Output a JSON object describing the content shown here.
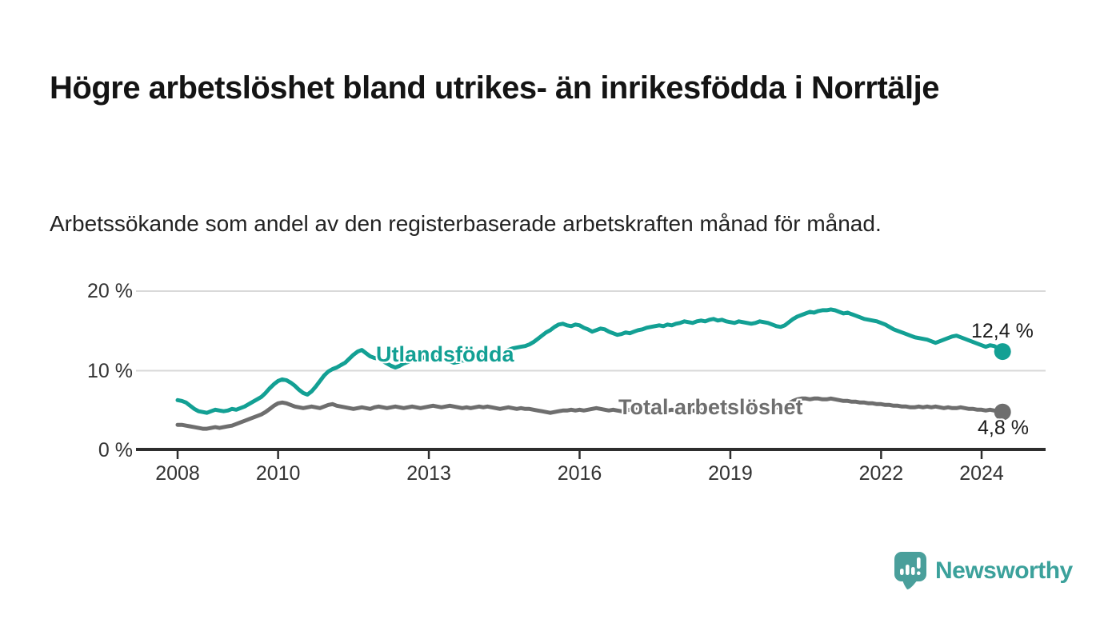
{
  "header": {
    "title": "Högre arbetslöshet bland utrikes- än inrikesfödda i Norrtälje",
    "subtitle": "Arbetssökande som andel av den registerbaserade arbetskraften månad för månad."
  },
  "branding": {
    "name": "Newsworthy",
    "logo_icon": "speech-bubble-bar-chart-icon",
    "brand_color": "#3ba19b",
    "logo_bubble_color": "#4a9f9b"
  },
  "chart_data": {
    "type": "line",
    "title": "Högre arbetslöshet bland utrikes- än inrikesfödda i Norrtälje",
    "subtitle": "Arbetssökande som andel av den registerbaserade arbetskraften månad för månad.",
    "unit": "%",
    "x_start_year": 2008,
    "x_step": "monthly",
    "x_end_year": 2024.417,
    "ylim": [
      0,
      20
    ],
    "yticks": [
      "0 %",
      "10 %",
      "20 %"
    ],
    "ytick_values": [
      0,
      10,
      20
    ],
    "xticks": [
      2008,
      2010,
      2013,
      2016,
      2019,
      2022,
      2024
    ],
    "grid": "horizontal-only",
    "legend_position": "inline-on-line",
    "axis_color": "#2e2e2e",
    "grid_color": "#d9d9d9",
    "series": [
      {
        "name": "Utlandsfödda",
        "color": "#13a094",
        "end_label": "12,4 %",
        "end_value": 12.4,
        "values": [
          6.3,
          6.2,
          6.0,
          5.6,
          5.2,
          4.9,
          4.8,
          4.7,
          4.9,
          5.1,
          5.0,
          4.9,
          5.0,
          5.2,
          5.1,
          5.3,
          5.5,
          5.8,
          6.1,
          6.4,
          6.7,
          7.2,
          7.8,
          8.3,
          8.7,
          8.9,
          8.8,
          8.5,
          8.1,
          7.6,
          7.2,
          7.0,
          7.4,
          8.0,
          8.7,
          9.4,
          9.9,
          10.2,
          10.4,
          10.7,
          11.0,
          11.5,
          12.0,
          12.4,
          12.6,
          12.2,
          11.8,
          11.6,
          11.5,
          11.2,
          10.9,
          10.6,
          10.4,
          10.6,
          10.9,
          11.1,
          11.3,
          11.2,
          11.5,
          11.7,
          11.8,
          11.7,
          11.6,
          11.5,
          11.3,
          11.2,
          11.0,
          11.1,
          11.3,
          11.2,
          11.4,
          11.5,
          11.6,
          11.8,
          12.0,
          12.1,
          12.3,
          12.2,
          12.4,
          12.6,
          12.8,
          12.9,
          13.0,
          13.1,
          13.3,
          13.6,
          14.0,
          14.4,
          14.8,
          15.1,
          15.5,
          15.8,
          15.9,
          15.7,
          15.6,
          15.8,
          15.7,
          15.4,
          15.2,
          14.9,
          15.1,
          15.3,
          15.2,
          14.9,
          14.7,
          14.5,
          14.6,
          14.8,
          14.7,
          14.9,
          15.1,
          15.2,
          15.4,
          15.5,
          15.6,
          15.7,
          15.6,
          15.8,
          15.7,
          15.9,
          16.0,
          16.2,
          16.1,
          16.0,
          16.2,
          16.3,
          16.2,
          16.4,
          16.5,
          16.3,
          16.4,
          16.2,
          16.1,
          16.0,
          16.2,
          16.1,
          16.0,
          15.9,
          16.0,
          16.2,
          16.1,
          16.0,
          15.8,
          15.6,
          15.5,
          15.7,
          16.1,
          16.5,
          16.8,
          17.0,
          17.2,
          17.4,
          17.3,
          17.5,
          17.6,
          17.6,
          17.7,
          17.6,
          17.4,
          17.2,
          17.3,
          17.1,
          16.9,
          16.7,
          16.5,
          16.4,
          16.3,
          16.2,
          16.0,
          15.8,
          15.5,
          15.2,
          15.0,
          14.8,
          14.6,
          14.4,
          14.2,
          14.1,
          14.0,
          13.9,
          13.7,
          13.5,
          13.7,
          13.9,
          14.1,
          14.3,
          14.4,
          14.2,
          14.0,
          13.8,
          13.6,
          13.4,
          13.2,
          13.0,
          13.2,
          13.1,
          12.8,
          12.4
        ]
      },
      {
        "name": "Total arbetslöshet",
        "color": "#6e6e6e",
        "end_label": "4,8 %",
        "end_value": 4.8,
        "values": [
          3.2,
          3.2,
          3.1,
          3.0,
          2.9,
          2.8,
          2.7,
          2.7,
          2.8,
          2.9,
          2.8,
          2.9,
          3.0,
          3.1,
          3.3,
          3.5,
          3.7,
          3.9,
          4.1,
          4.3,
          4.5,
          4.8,
          5.2,
          5.6,
          5.9,
          6.0,
          5.9,
          5.7,
          5.5,
          5.4,
          5.3,
          5.4,
          5.5,
          5.4,
          5.3,
          5.5,
          5.7,
          5.8,
          5.6,
          5.5,
          5.4,
          5.3,
          5.2,
          5.3,
          5.4,
          5.3,
          5.2,
          5.4,
          5.5,
          5.4,
          5.3,
          5.4,
          5.5,
          5.4,
          5.3,
          5.4,
          5.5,
          5.4,
          5.3,
          5.4,
          5.5,
          5.6,
          5.5,
          5.4,
          5.5,
          5.6,
          5.5,
          5.4,
          5.3,
          5.4,
          5.3,
          5.4,
          5.5,
          5.4,
          5.5,
          5.4,
          5.3,
          5.2,
          5.3,
          5.4,
          5.3,
          5.2,
          5.3,
          5.2,
          5.2,
          5.1,
          5.0,
          4.9,
          4.8,
          4.7,
          4.8,
          4.9,
          5.0,
          5.0,
          5.1,
          5.0,
          5.1,
          5.0,
          5.1,
          5.2,
          5.3,
          5.2,
          5.1,
          5.0,
          5.1,
          5.0,
          4.9,
          5.0,
          5.1,
          5.2,
          5.1,
          5.0,
          5.1,
          5.2,
          5.1,
          5.0,
          5.1,
          5.0,
          5.1,
          5.0,
          5.1,
          5.0,
          5.1,
          5.0,
          4.9,
          5.0,
          5.1,
          5.0,
          5.1,
          5.2,
          5.1,
          5.2,
          5.2,
          5.3,
          5.2,
          5.3,
          5.2,
          5.3,
          5.4,
          5.3,
          5.4,
          5.3,
          5.4,
          5.4,
          5.5,
          5.6,
          5.9,
          6.2,
          6.4,
          6.5,
          6.5,
          6.4,
          6.5,
          6.5,
          6.4,
          6.4,
          6.5,
          6.4,
          6.3,
          6.2,
          6.2,
          6.1,
          6.1,
          6.0,
          6.0,
          5.9,
          5.9,
          5.8,
          5.8,
          5.7,
          5.7,
          5.6,
          5.6,
          5.5,
          5.5,
          5.4,
          5.4,
          5.5,
          5.4,
          5.5,
          5.4,
          5.5,
          5.4,
          5.3,
          5.4,
          5.3,
          5.3,
          5.4,
          5.3,
          5.2,
          5.2,
          5.1,
          5.1,
          5.0,
          5.1,
          5.0,
          4.9,
          4.8
        ]
      }
    ]
  }
}
